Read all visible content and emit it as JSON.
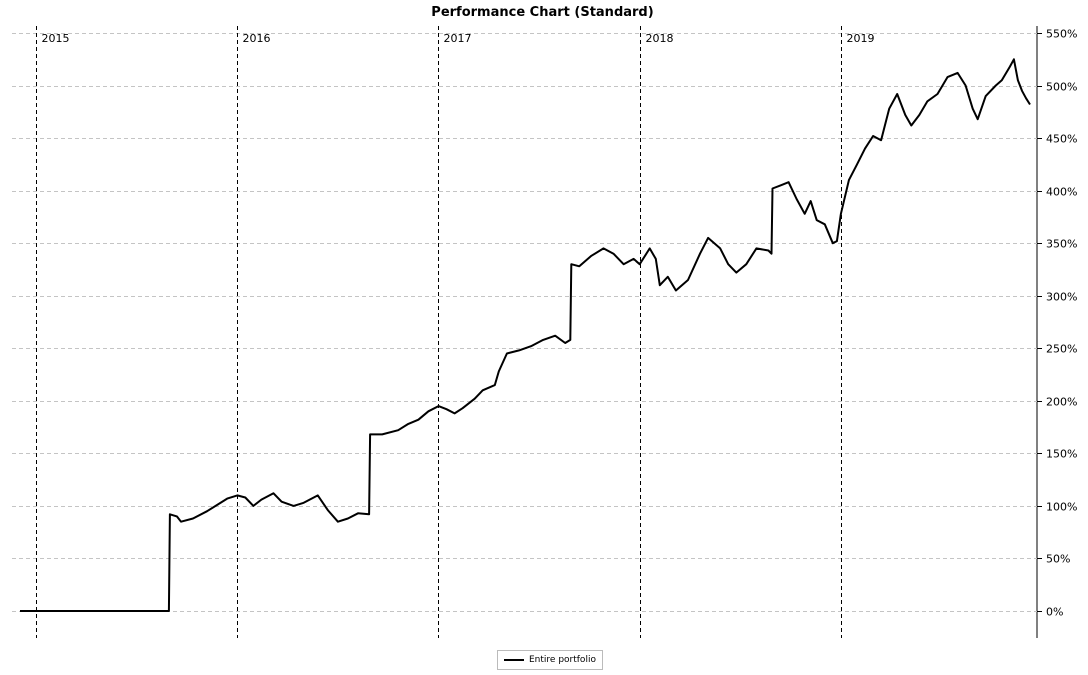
{
  "chart_data": {
    "type": "line",
    "title": "Performance Chart (Standard)",
    "xlabel": "",
    "ylabel": "",
    "x_range": [
      2014.92,
      2019.94
    ],
    "ylim": [
      -25,
      555
    ],
    "yticks": [
      0,
      50,
      100,
      150,
      200,
      250,
      300,
      350,
      400,
      450,
      500,
      550
    ],
    "ytick_labels": [
      "0%",
      "50%",
      "100%",
      "150%",
      "200%",
      "250%",
      "300%",
      "350%",
      "400%",
      "450%",
      "500%",
      "550%"
    ],
    "year_labels": [
      {
        "label": "2015",
        "x": 2015.0
      },
      {
        "label": "2016",
        "x": 2016.0
      },
      {
        "label": "2017",
        "x": 2017.0
      },
      {
        "label": "2018",
        "x": 2018.0
      },
      {
        "label": "2019",
        "x": 2019.0
      }
    ],
    "grid": true,
    "legend": "bottom-center",
    "series": [
      {
        "name": "Entire portfolio",
        "color": "#000000",
        "points": [
          [
            2014.92,
            0
          ],
          [
            2015.3,
            0
          ],
          [
            2015.66,
            0
          ],
          [
            2015.665,
            92
          ],
          [
            2015.7,
            90
          ],
          [
            2015.72,
            85
          ],
          [
            2015.78,
            88
          ],
          [
            2015.85,
            95
          ],
          [
            2015.95,
            107
          ],
          [
            2016.0,
            110
          ],
          [
            2016.04,
            108
          ],
          [
            2016.08,
            100
          ],
          [
            2016.12,
            106
          ],
          [
            2016.18,
            112
          ],
          [
            2016.22,
            104
          ],
          [
            2016.28,
            100
          ],
          [
            2016.33,
            103
          ],
          [
            2016.4,
            110
          ],
          [
            2016.45,
            96
          ],
          [
            2016.5,
            85
          ],
          [
            2016.55,
            88
          ],
          [
            2016.6,
            93
          ],
          [
            2016.655,
            92
          ],
          [
            2016.66,
            168
          ],
          [
            2016.72,
            168
          ],
          [
            2016.8,
            172
          ],
          [
            2016.85,
            178
          ],
          [
            2016.9,
            182
          ],
          [
            2016.95,
            190
          ],
          [
            2017.0,
            195
          ],
          [
            2017.04,
            192
          ],
          [
            2017.08,
            188
          ],
          [
            2017.12,
            193
          ],
          [
            2017.18,
            202
          ],
          [
            2017.22,
            210
          ],
          [
            2017.28,
            215
          ],
          [
            2017.3,
            228
          ],
          [
            2017.34,
            245
          ],
          [
            2017.4,
            248
          ],
          [
            2017.46,
            252
          ],
          [
            2017.52,
            258
          ],
          [
            2017.58,
            262
          ],
          [
            2017.63,
            255
          ],
          [
            2017.655,
            258
          ],
          [
            2017.66,
            330
          ],
          [
            2017.7,
            328
          ],
          [
            2017.76,
            338
          ],
          [
            2017.82,
            345
          ],
          [
            2017.87,
            340
          ],
          [
            2017.92,
            330
          ],
          [
            2017.97,
            335
          ],
          [
            2018.0,
            330
          ],
          [
            2018.05,
            345
          ],
          [
            2018.08,
            335
          ],
          [
            2018.1,
            310
          ],
          [
            2018.14,
            318
          ],
          [
            2018.18,
            305
          ],
          [
            2018.24,
            315
          ],
          [
            2018.3,
            340
          ],
          [
            2018.34,
            355
          ],
          [
            2018.4,
            345
          ],
          [
            2018.44,
            330
          ],
          [
            2018.48,
            322
          ],
          [
            2018.53,
            330
          ],
          [
            2018.58,
            345
          ],
          [
            2018.64,
            343
          ],
          [
            2018.655,
            340
          ],
          [
            2018.66,
            402
          ],
          [
            2018.7,
            405
          ],
          [
            2018.74,
            408
          ],
          [
            2018.78,
            392
          ],
          [
            2018.82,
            378
          ],
          [
            2018.85,
            390
          ],
          [
            2018.88,
            372
          ],
          [
            2018.92,
            368
          ],
          [
            2018.96,
            350
          ],
          [
            2018.98,
            352
          ],
          [
            2019.0,
            378
          ],
          [
            2019.04,
            410
          ],
          [
            2019.08,
            425
          ],
          [
            2019.12,
            440
          ],
          [
            2019.16,
            452
          ],
          [
            2019.2,
            448
          ],
          [
            2019.24,
            478
          ],
          [
            2019.28,
            492
          ],
          [
            2019.32,
            472
          ],
          [
            2019.35,
            462
          ],
          [
            2019.39,
            472
          ],
          [
            2019.43,
            485
          ],
          [
            2019.48,
            492
          ],
          [
            2019.53,
            508
          ],
          [
            2019.58,
            512
          ],
          [
            2019.62,
            500
          ],
          [
            2019.655,
            478
          ],
          [
            2019.68,
            468
          ],
          [
            2019.72,
            490
          ],
          [
            2019.77,
            500
          ],
          [
            2019.8,
            505
          ],
          [
            2019.84,
            518
          ],
          [
            2019.86,
            525
          ],
          [
            2019.88,
            505
          ],
          [
            2019.9,
            495
          ],
          [
            2019.92,
            488
          ],
          [
            2019.94,
            482
          ]
        ]
      }
    ]
  }
}
